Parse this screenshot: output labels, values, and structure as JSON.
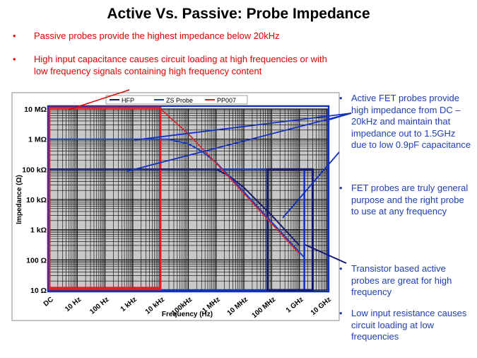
{
  "title": "Active Vs. Passive: Probe Impedance",
  "left_bullets": [
    "Passive probes provide  the highest impedance  below 20kHz",
    "High  input capacitance causes circuit loading  at high frequencies or with low frequency signals containing high frequency content"
  ],
  "right_bullets": [
    "Active FET probes provide high impedance from DC – 20kHz and maintain  that impedance out to 1.5GHz  due to low 0.9pF capacitance",
    "FET probes are truly general purpose and the right  probe to use at any frequency",
    "Transistor based active probes are great for high frequency",
    "Low input resistance causes circuit loading at low frequencies"
  ],
  "bullet_symbol": "•",
  "colors": {
    "hfp": "#1a1a6e",
    "zs": "#1a3fc8",
    "pp007": "#e02020",
    "highlight": "#1030c0",
    "text_blue": "#1f3fb0",
    "text_red": "#e00000"
  },
  "chart_data": {
    "type": "line",
    "xscale": "log",
    "yscale": "log",
    "xlabel": "Frequency (Hz)",
    "ylabel": "Impedance (Ω)",
    "x_ticks": [
      "DC",
      "10 Hz",
      "100 Hz",
      "1 kHz",
      "10 kHz",
      "100kHz",
      "1 MHz",
      "10 MHz",
      "100 MHz",
      "1 GHz",
      "10 GHz"
    ],
    "y_ticks": [
      "10 MΩ",
      "1 MΩ",
      "100 kΩ",
      "10 kΩ",
      "1 kΩ",
      "100 Ω",
      "10 Ω"
    ],
    "xlim": [
      1,
      10000000000
    ],
    "ylim": [
      10,
      10000000
    ],
    "grid": true,
    "legend_position": "top",
    "series": [
      {
        "name": "HFP",
        "x": [
          1,
          1000000,
          3000000,
          10000000,
          30000000,
          100000000,
          300000000,
          1000000000
        ],
        "y": [
          100000,
          100000,
          60000,
          25000,
          9000,
          3000,
          1000,
          300
        ]
      },
      {
        "name": "ZS Probe",
        "x": [
          1,
          20000,
          100000,
          300000,
          1000000,
          10000000,
          100000000,
          1000000000,
          1500000000
        ],
        "y": [
          1000000,
          1000000,
          700000,
          400000,
          170000,
          18000,
          1800,
          180,
          120
        ]
      },
      {
        "name": "PP007",
        "x": [
          1,
          10000,
          100000,
          1000000,
          10000000,
          100000000,
          1000000000
        ],
        "y": [
          10000000,
          10000000,
          1500000,
          160000,
          16000,
          1600,
          160
        ]
      }
    ]
  }
}
